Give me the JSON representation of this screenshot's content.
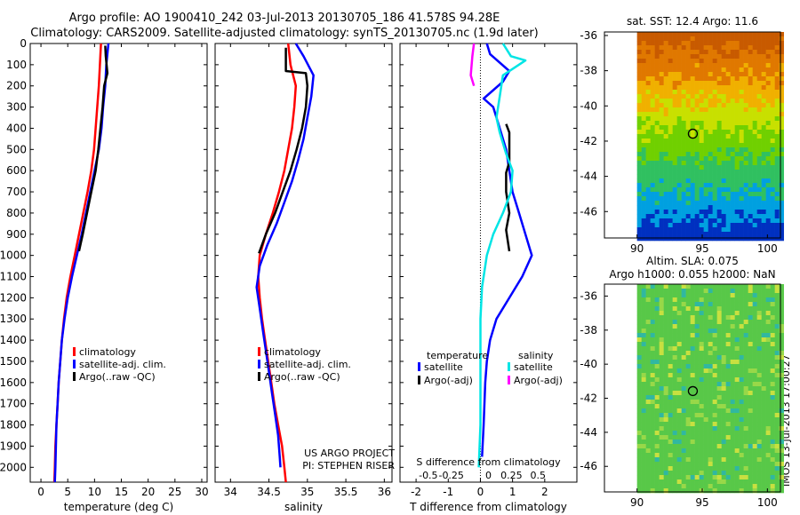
{
  "header": {
    "line1": "Argo profile: AO 1900410_242 03-Jul-2013 20130705_186 41.578S 94.28E",
    "line2": "Climatology: CARS2009. Satellite-adjusted climatology: synTS_20130705.nc (1.9d later)"
  },
  "side_tag": "IMOS 13-Jul-2013 17:00:27",
  "colors": {
    "climatology": "#ff0000",
    "satellite": "#0000ff",
    "argo": "#000000",
    "satellite_s": "#00e5e5",
    "argo_s": "#ff00ff"
  },
  "chart_data": [
    {
      "type": "line",
      "xlabel": "temperature (deg C)",
      "xlim": [
        -2,
        31
      ],
      "ylim": [
        2070,
        0
      ],
      "xticks": [
        0,
        5,
        10,
        15,
        20,
        25,
        30
      ],
      "yticks": [
        0,
        100,
        200,
        300,
        400,
        500,
        600,
        700,
        800,
        900,
        1000,
        1100,
        1200,
        1300,
        1400,
        1500,
        1600,
        1700,
        1800,
        1900,
        2000
      ],
      "legend": [
        "climatology",
        "satellite-adj. clim.",
        "Argo(..raw -QC)"
      ],
      "series": [
        {
          "name": "climatology",
          "color": "#ff0000",
          "points": [
            [
              11.2,
              0
            ],
            [
              11.0,
              100
            ],
            [
              10.8,
              200
            ],
            [
              10.5,
              300
            ],
            [
              10.2,
              400
            ],
            [
              9.9,
              500
            ],
            [
              9.4,
              600
            ],
            [
              8.7,
              700
            ],
            [
              7.9,
              800
            ],
            [
              7.1,
              900
            ],
            [
              6.3,
              1000
            ],
            [
              5.5,
              1100
            ],
            [
              4.8,
              1200
            ],
            [
              4.3,
              1300
            ],
            [
              3.9,
              1400
            ],
            [
              3.6,
              1500
            ],
            [
              3.3,
              1600
            ],
            [
              3.1,
              1700
            ],
            [
              2.9,
              1800
            ],
            [
              2.7,
              1900
            ],
            [
              2.6,
              2000
            ],
            [
              2.5,
              2070
            ]
          ]
        },
        {
          "name": "satellite-adj. clim.",
          "color": "#0000ff",
          "points": [
            [
              12.6,
              0
            ],
            [
              12.2,
              100
            ],
            [
              12.0,
              200
            ],
            [
              11.6,
              300
            ],
            [
              11.3,
              400
            ],
            [
              10.8,
              500
            ],
            [
              10.0,
              600
            ],
            [
              9.2,
              700
            ],
            [
              8.4,
              800
            ],
            [
              7.6,
              900
            ],
            [
              6.7,
              1000
            ],
            [
              5.8,
              1100
            ],
            [
              5.0,
              1200
            ],
            [
              4.4,
              1300
            ],
            [
              3.9,
              1400
            ],
            [
              3.6,
              1500
            ],
            [
              3.3,
              1600
            ],
            [
              3.1,
              1700
            ],
            [
              2.9,
              1800
            ],
            [
              2.8,
              1900
            ],
            [
              2.7,
              2000
            ],
            [
              2.6,
              2070
            ]
          ]
        },
        {
          "name": "Argo(..raw -QC)",
          "color": "#000000",
          "points": [
            [
              12.0,
              10
            ],
            [
              12.1,
              60
            ],
            [
              12.4,
              140
            ],
            [
              11.8,
              200
            ],
            [
              11.5,
              300
            ],
            [
              11.1,
              400
            ],
            [
              10.7,
              500
            ],
            [
              10.2,
              600
            ],
            [
              9.4,
              700
            ],
            [
              8.6,
              800
            ],
            [
              7.8,
              900
            ],
            [
              7.1,
              980
            ]
          ]
        }
      ]
    },
    {
      "type": "line",
      "xlabel": "salinity",
      "xlim": [
        33.8,
        36.1
      ],
      "ylim": [
        2070,
        0
      ],
      "xticks": [
        34,
        34.5,
        35,
        35.5,
        36
      ],
      "legend": [
        "climatology",
        "satellite-adj. clim.",
        "Argo(..raw -QC)"
      ],
      "annotation": [
        "US ARGO PROJECT",
        "PI: STEPHEN RISER"
      ],
      "series": [
        {
          "name": "climatology",
          "color": "#ff0000",
          "points": [
            [
              34.75,
              0
            ],
            [
              34.78,
              100
            ],
            [
              34.85,
              200
            ],
            [
              34.83,
              300
            ],
            [
              34.8,
              400
            ],
            [
              34.75,
              500
            ],
            [
              34.7,
              600
            ],
            [
              34.63,
              700
            ],
            [
              34.55,
              800
            ],
            [
              34.46,
              900
            ],
            [
              34.38,
              1000
            ],
            [
              34.36,
              1100
            ],
            [
              34.38,
              1200
            ],
            [
              34.41,
              1300
            ],
            [
              34.45,
              1400
            ],
            [
              34.49,
              1500
            ],
            [
              34.53,
              1600
            ],
            [
              34.57,
              1700
            ],
            [
              34.62,
              1800
            ],
            [
              34.67,
              1900
            ],
            [
              34.7,
              2000
            ],
            [
              34.72,
              2070
            ]
          ]
        },
        {
          "name": "satellite-adj. clim.",
          "color": "#0000ff",
          "points": [
            [
              34.85,
              0
            ],
            [
              34.95,
              60
            ],
            [
              35.08,
              150
            ],
            [
              35.05,
              250
            ],
            [
              35.0,
              350
            ],
            [
              34.95,
              450
            ],
            [
              34.88,
              550
            ],
            [
              34.8,
              650
            ],
            [
              34.7,
              750
            ],
            [
              34.6,
              850
            ],
            [
              34.48,
              950
            ],
            [
              34.38,
              1050
            ],
            [
              34.34,
              1150
            ],
            [
              34.38,
              1250
            ],
            [
              34.42,
              1350
            ],
            [
              34.46,
              1450
            ],
            [
              34.5,
              1550
            ],
            [
              34.54,
              1650
            ],
            [
              34.58,
              1750
            ],
            [
              34.62,
              1850
            ],
            [
              34.64,
              1950
            ],
            [
              34.65,
              2000
            ]
          ]
        },
        {
          "name": "Argo(..raw -QC)",
          "color": "#000000",
          "points": [
            [
              34.72,
              20
            ],
            [
              34.72,
              80
            ],
            [
              34.72,
              130
            ],
            [
              34.98,
              140
            ],
            [
              35.0,
              200
            ],
            [
              34.98,
              300
            ],
            [
              34.93,
              400
            ],
            [
              34.86,
              500
            ],
            [
              34.78,
              600
            ],
            [
              34.68,
              700
            ],
            [
              34.58,
              800
            ],
            [
              34.46,
              900
            ],
            [
              34.37,
              990
            ]
          ]
        }
      ]
    },
    {
      "type": "line",
      "xlabel": "T difference from climatology",
      "xlabel_top": "S difference from climatology",
      "xlim": [
        -2.5,
        3
      ],
      "ylim": [
        2070,
        0
      ],
      "xticks": [
        -2,
        -1,
        0,
        1,
        2
      ],
      "xticks_top": [
        "-0.5",
        "-0.25",
        "0",
        "0.25",
        "0.5"
      ],
      "legend_titles": [
        "temperature",
        "salinity"
      ],
      "legend": [
        "satellite",
        "Argo(-adj)",
        "satellite",
        "Argo(-adj)"
      ],
      "series": [
        {
          "name": "satellite",
          "group": "temperature",
          "color": "#0000ff",
          "points": [
            [
              0.2,
              0
            ],
            [
              0.3,
              50
            ],
            [
              0.9,
              130
            ],
            [
              0.7,
              180
            ],
            [
              0.1,
              260
            ],
            [
              0.4,
              300
            ],
            [
              0.6,
              400
            ],
            [
              0.8,
              500
            ],
            [
              0.9,
              600
            ],
            [
              1.0,
              700
            ],
            [
              1.2,
              800
            ],
            [
              1.4,
              900
            ],
            [
              1.6,
              1000
            ],
            [
              1.3,
              1100
            ],
            [
              0.9,
              1200
            ],
            [
              0.5,
              1300
            ],
            [
              0.3,
              1400
            ],
            [
              0.2,
              1500
            ],
            [
              0.15,
              1600
            ],
            [
              0.1,
              1800
            ],
            [
              0.05,
              1950
            ]
          ]
        },
        {
          "name": "Argo(-adj)",
          "group": "temperature",
          "color": "#000000",
          "points": [
            [
              0.8,
              380
            ],
            [
              0.9,
              420
            ],
            [
              0.9,
              560
            ],
            [
              0.8,
              610
            ],
            [
              0.8,
              700
            ],
            [
              0.9,
              800
            ],
            [
              0.8,
              880
            ],
            [
              0.9,
              980
            ]
          ]
        },
        {
          "name": "satellite",
          "group": "salinity",
          "color": "#00e5e5",
          "points": [
            [
              0.7,
              0
            ],
            [
              0.95,
              60
            ],
            [
              1.4,
              80
            ],
            [
              0.7,
              150
            ],
            [
              0.6,
              250
            ],
            [
              0.5,
              350
            ],
            [
              0.6,
              420
            ],
            [
              0.8,
              520
            ],
            [
              1.0,
              600
            ],
            [
              0.95,
              700
            ],
            [
              0.7,
              800
            ],
            [
              0.4,
              900
            ],
            [
              0.2,
              1000
            ],
            [
              0.05,
              1150
            ],
            [
              0.0,
              1300
            ],
            [
              0.0,
              1500
            ],
            [
              0.0,
              1800
            ],
            [
              -0.05,
              2000
            ]
          ]
        },
        {
          "name": "Argo(-adj)",
          "group": "salinity",
          "color": "#ff00ff",
          "points": [
            [
              -0.2,
              0
            ],
            [
              -0.25,
              60
            ],
            [
              -0.3,
              150
            ],
            [
              -0.2,
              200
            ]
          ]
        }
      ]
    },
    {
      "type": "heatmap",
      "title": "sat. SST: 12.4 Argo: 11.6",
      "xlim": [
        87.5,
        101
      ],
      "ylim": [
        -47.5,
        -35.8
      ],
      "xticks": [
        90,
        95,
        100
      ],
      "yticks": [
        -36,
        -38,
        -40,
        -42,
        -44,
        -46
      ],
      "marker": [
        94.28,
        -41.578
      ],
      "bands": [
        {
          "lat": -36,
          "color": "#c85a00"
        },
        {
          "lat": -37.5,
          "color": "#e07800"
        },
        {
          "lat": -39,
          "color": "#f0b000"
        },
        {
          "lat": -40.5,
          "color": "#c8e000"
        },
        {
          "lat": -42,
          "color": "#70d000"
        },
        {
          "lat": -44,
          "color": "#30c060"
        },
        {
          "lat": -45.5,
          "color": "#00a0e0"
        },
        {
          "lat": -47,
          "color": "#0030c0"
        }
      ]
    },
    {
      "type": "heatmap",
      "title_lines": [
        "Altim. SLA: 0.075",
        "Argo h1000: 0.055 h2000: NaN"
      ],
      "xlim": [
        87.5,
        101
      ],
      "ylim": [
        -47.5,
        -35.3
      ],
      "xticks": [
        90,
        95,
        100
      ],
      "yticks": [
        -36,
        -38,
        -40,
        -42,
        -44,
        -46
      ],
      "marker": [
        94.28,
        -41.578
      ],
      "base_color": "#58c848"
    }
  ]
}
